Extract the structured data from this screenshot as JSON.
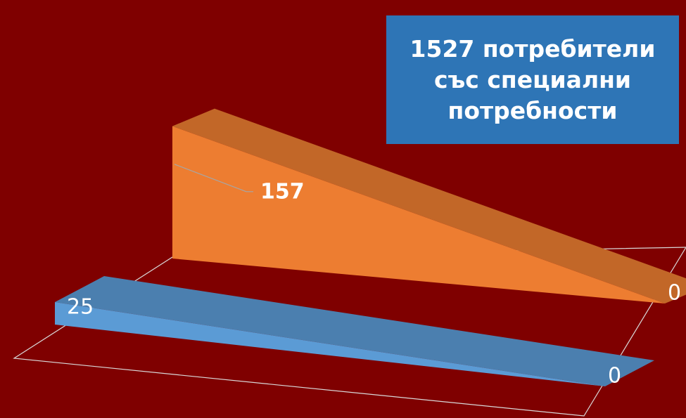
{
  "chart_data": {
    "type": "area",
    "title": "1527 потребители със специални потребности",
    "categories": [
      null,
      null
    ],
    "series": [
      {
        "name": null,
        "color": "#5b9bd5",
        "values": [
          25,
          0
        ]
      },
      {
        "name": null,
        "color": "#ed7d31",
        "values": [
          157,
          0
        ]
      }
    ]
  }
}
